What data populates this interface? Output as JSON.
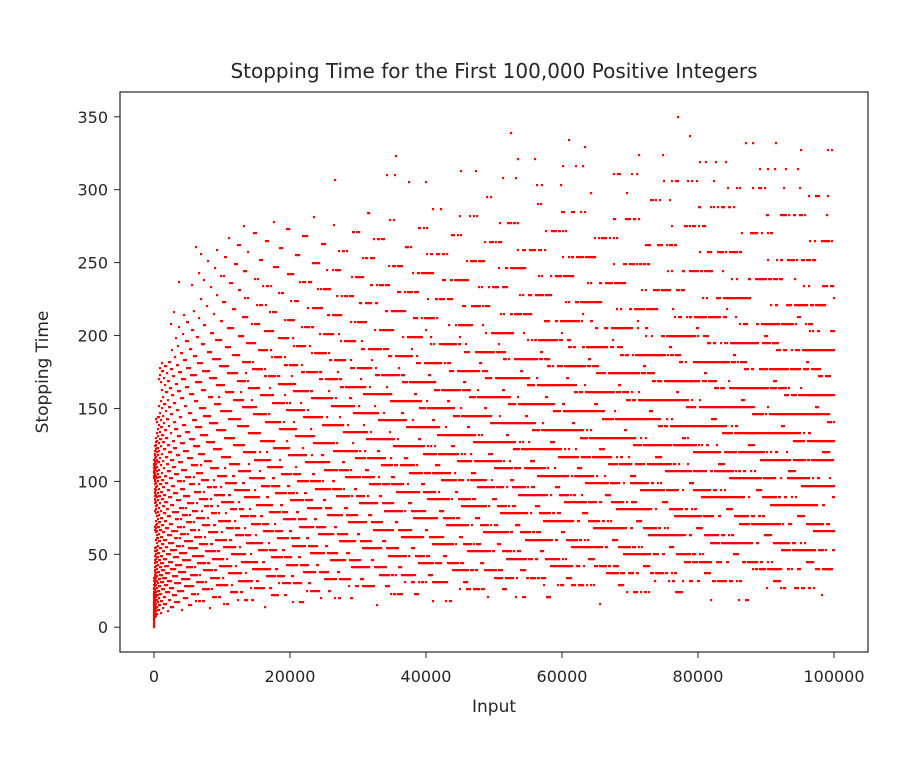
{
  "chart_data": {
    "type": "scatter",
    "title": "Stopping Time for the First 100,000 Positive Integers",
    "xlabel": "Input",
    "ylabel": "Stopping Time",
    "xlim": [
      -5000,
      105000
    ],
    "ylim": [
      -17,
      367
    ],
    "x_ticks": [
      0,
      20000,
      40000,
      60000,
      80000,
      100000
    ],
    "y_ticks": [
      0,
      50,
      100,
      150,
      200,
      250,
      300,
      350
    ],
    "series": [
      {
        "x_range": [
          1,
          100000
        ],
        "description_of_values": "Collatz stopping time (steps to reach 1) for each positive integer n from 1 to 100,000",
        "max_value": 350,
        "max_at": 77031,
        "marker_color": "#ff0000",
        "marker": "point"
      }
    ],
    "grid": false,
    "legend": "none"
  }
}
